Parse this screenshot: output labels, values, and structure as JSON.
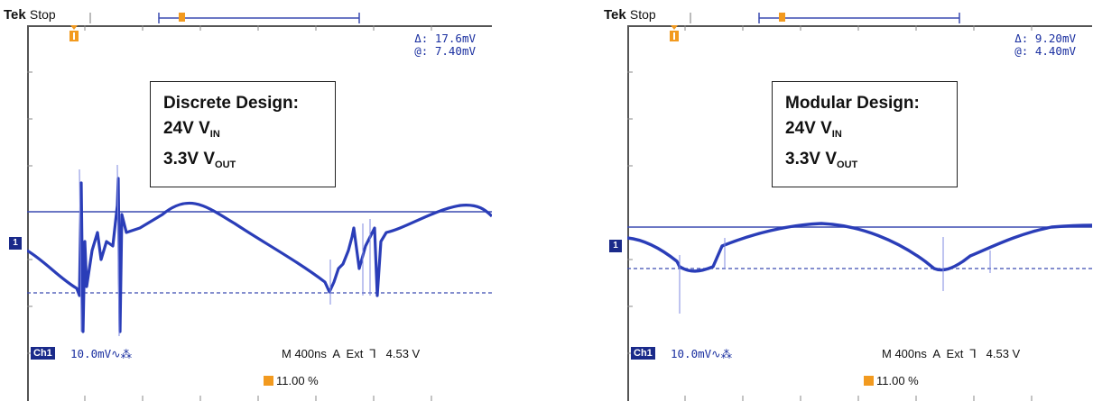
{
  "scopes": [
    {
      "brand": "Tek",
      "state": "Stop",
      "cursor": {
        "delta_label": "Δ:",
        "delta_value": "17.6mV",
        "at_label": "@:",
        "at_value": "7.40mV"
      },
      "annotation": {
        "line1": "Discrete Design:",
        "vin_main": "24V V",
        "vin_sub": "IN",
        "vout_main": "3.3V V",
        "vout_sub": "OUT"
      },
      "channel_marker": "1",
      "ch_badge": "Ch1",
      "ch_scale": "10.0mV",
      "timebase": "M 400ns  A  Ext  ⅂   4.53 V",
      "trigger_level": "11.00 %"
    },
    {
      "brand": "Tek",
      "state": "Stop",
      "cursor": {
        "delta_label": "Δ:",
        "delta_value": "9.20mV",
        "at_label": "@:",
        "at_value": "4.40mV"
      },
      "annotation": {
        "line1": "Modular Design:",
        "vin_main": "24V V",
        "vin_sub": "IN",
        "vout_main": "3.3V V",
        "vout_sub": "OUT"
      },
      "channel_marker": "1",
      "ch_badge": "Ch1",
      "ch_scale": "10.0mV",
      "timebase": "M 400ns  A  Ext  ⅂   4.53 V",
      "trigger_level": "11.00 %"
    }
  ],
  "colors": {
    "trace": "#2a3db8",
    "cursor": "#3a4ab0",
    "trigger": "#f29a1f",
    "grid": "#555555"
  }
}
